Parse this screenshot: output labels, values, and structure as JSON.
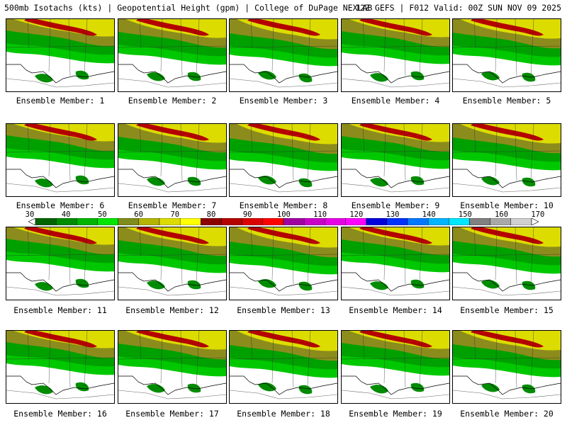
{
  "header": {
    "left": "500mb Isotachs (kts) | Geopotential Height (gpm) | College of DuPage NEXLAB",
    "right": "12Z GEFS | F012 Valid: 00Z SUN NOV 09 2025"
  },
  "members": [
    {
      "label": "Ensemble Member: 1"
    },
    {
      "label": "Ensemble Member: 2"
    },
    {
      "label": "Ensemble Member: 3"
    },
    {
      "label": "Ensemble Member: 4"
    },
    {
      "label": "Ensemble Member: 5"
    },
    {
      "label": "Ensemble Member: 6"
    },
    {
      "label": "Ensemble Member: 7"
    },
    {
      "label": "Ensemble Member: 8"
    },
    {
      "label": "Ensemble Member: 9"
    },
    {
      "label": "Ensemble Member: 10"
    },
    {
      "label": "Ensemble Member: 11"
    },
    {
      "label": "Ensemble Member: 12"
    },
    {
      "label": "Ensemble Member: 13"
    },
    {
      "label": "Ensemble Member: 14"
    },
    {
      "label": "Ensemble Member: 15"
    },
    {
      "label": "Ensemble Member: 16"
    },
    {
      "label": "Ensemble Member: 17"
    },
    {
      "label": "Ensemble Member: 18"
    },
    {
      "label": "Ensemble Member: 19"
    },
    {
      "label": "Ensemble Member: 20"
    }
  ],
  "colorbar": {
    "labels": [
      "30",
      "40",
      "50",
      "60",
      "70",
      "80",
      "90",
      "100",
      "110",
      "120",
      "130",
      "140",
      "150",
      "160",
      "170"
    ],
    "colors": [
      "#006400",
      "#008c00",
      "#00b400",
      "#00e600",
      "#7f8c1c",
      "#b4b400",
      "#dcdc00",
      "#ffff00",
      "#8c0000",
      "#b40000",
      "#dc0000",
      "#ff0000",
      "#a000a0",
      "#c800c8",
      "#e600e6",
      "#ff00ff",
      "#0000dc",
      "#0032ff",
      "#0078ff",
      "#00b4ff",
      "#00e6ff",
      "#808080",
      "#a8a8a8",
      "#d0d0d0"
    ]
  }
}
